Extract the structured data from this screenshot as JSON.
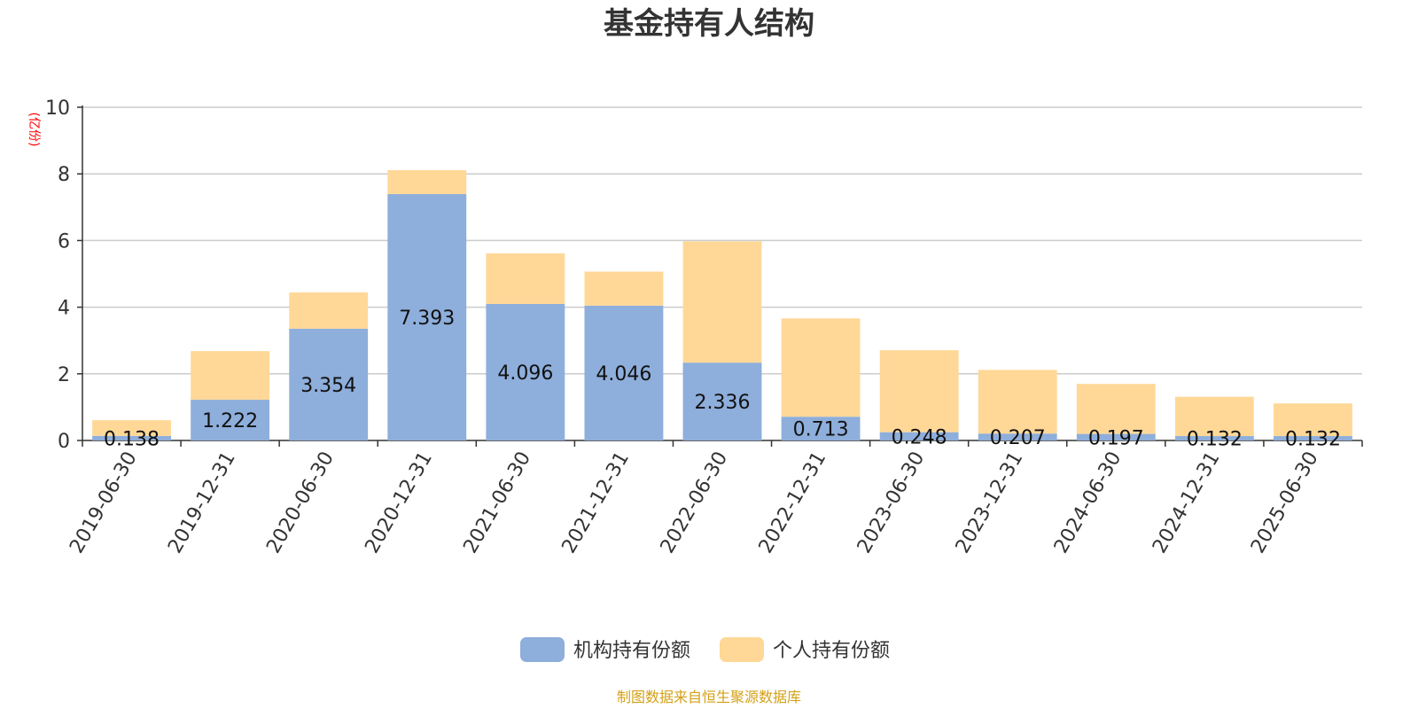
{
  "chart_data": {
    "type": "bar",
    "stacked": true,
    "title": "基金持有人结构",
    "ylabel": "(亿份)",
    "ylim": [
      0,
      10
    ],
    "yticks": [
      0,
      2,
      4,
      6,
      8,
      10
    ],
    "grid": true,
    "legend_position": "bottom-center",
    "categories": [
      "2019-06-30",
      "2019-12-31",
      "2020-06-30",
      "2020-12-31",
      "2021-06-30",
      "2021-12-31",
      "2022-06-30",
      "2022-12-31",
      "2023-06-30",
      "2023-12-31",
      "2024-06-30",
      "2024-12-31",
      "2025-06-30"
    ],
    "series": [
      {
        "name": "机构持有份额",
        "color": "#8eaedb",
        "values": [
          0.138,
          1.222,
          3.354,
          7.393,
          4.096,
          4.046,
          2.336,
          0.713,
          0.248,
          0.207,
          0.197,
          0.132,
          0.132
        ],
        "labels": [
          "0.138",
          "1.222",
          "3.354",
          "7.393",
          "4.096",
          "4.046",
          "2.336",
          "0.713",
          "0.248",
          "0.207",
          "0.197",
          "0.132",
          "0.132"
        ]
      },
      {
        "name": "个人持有份额",
        "color": "#ffd897",
        "values": [
          0.47,
          1.46,
          1.09,
          0.72,
          1.52,
          1.02,
          3.64,
          2.95,
          2.46,
          1.91,
          1.5,
          1.18,
          0.98
        ]
      }
    ],
    "source": "制图数据来自恒生聚源数据库"
  }
}
